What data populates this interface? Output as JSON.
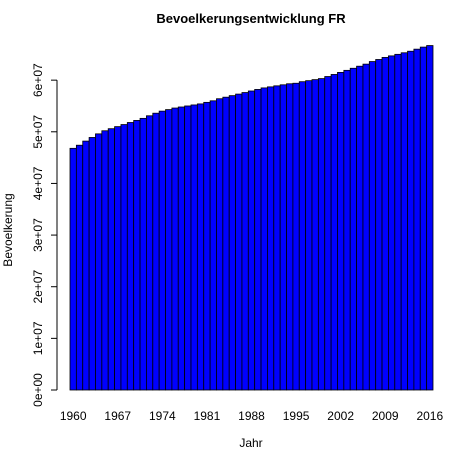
{
  "chart_data": {
    "type": "bar",
    "title": "Bevoelkerungsentwicklung FR",
    "xlabel": "Jahr",
    "ylabel": "Bevoelkerung",
    "ylim": [
      0,
      67000000
    ],
    "y_ticks": [
      0,
      10000000,
      20000000,
      30000000,
      40000000,
      50000000,
      60000000
    ],
    "y_tick_labels": [
      "0e+00",
      "1e+07",
      "2e+07",
      "3e+07",
      "4e+07",
      "5e+07",
      "6e+07"
    ],
    "x_tick_labels": [
      "1960",
      "1967",
      "1974",
      "1981",
      "1988",
      "1995",
      "2002",
      "2009",
      "2016"
    ],
    "categories": [
      "1960",
      "1961",
      "1962",
      "1963",
      "1964",
      "1965",
      "1966",
      "1967",
      "1968",
      "1969",
      "1970",
      "1971",
      "1972",
      "1973",
      "1974",
      "1975",
      "1976",
      "1977",
      "1978",
      "1979",
      "1980",
      "1981",
      "1982",
      "1983",
      "1984",
      "1985",
      "1986",
      "1987",
      "1988",
      "1989",
      "1990",
      "1991",
      "1992",
      "1993",
      "1994",
      "1995",
      "1996",
      "1997",
      "1998",
      "1999",
      "2000",
      "2001",
      "2002",
      "2003",
      "2004",
      "2005",
      "2006",
      "2007",
      "2008",
      "2009",
      "2010",
      "2011",
      "2012",
      "2013",
      "2014",
      "2015",
      "2016"
    ],
    "values": [
      46800000,
      47400000,
      48200000,
      48900000,
      49600000,
      50200000,
      50600000,
      51000000,
      51400000,
      51800000,
      52200000,
      52600000,
      53100000,
      53600000,
      54000000,
      54300000,
      54600000,
      54800000,
      55000000,
      55200000,
      55400000,
      55700000,
      56000000,
      56400000,
      56700000,
      57000000,
      57300000,
      57600000,
      57900000,
      58200000,
      58500000,
      58700000,
      58900000,
      59100000,
      59300000,
      59400000,
      59700000,
      59900000,
      60100000,
      60300000,
      60700000,
      61100000,
      61500000,
      61900000,
      62300000,
      62700000,
      63100000,
      63600000,
      64000000,
      64400000,
      64700000,
      65000000,
      65300000,
      65600000,
      66000000,
      66400000,
      66700000
    ],
    "bar_color": "#0000ff",
    "bar_border_color": "#000000",
    "grid": false,
    "legend": "none"
  }
}
